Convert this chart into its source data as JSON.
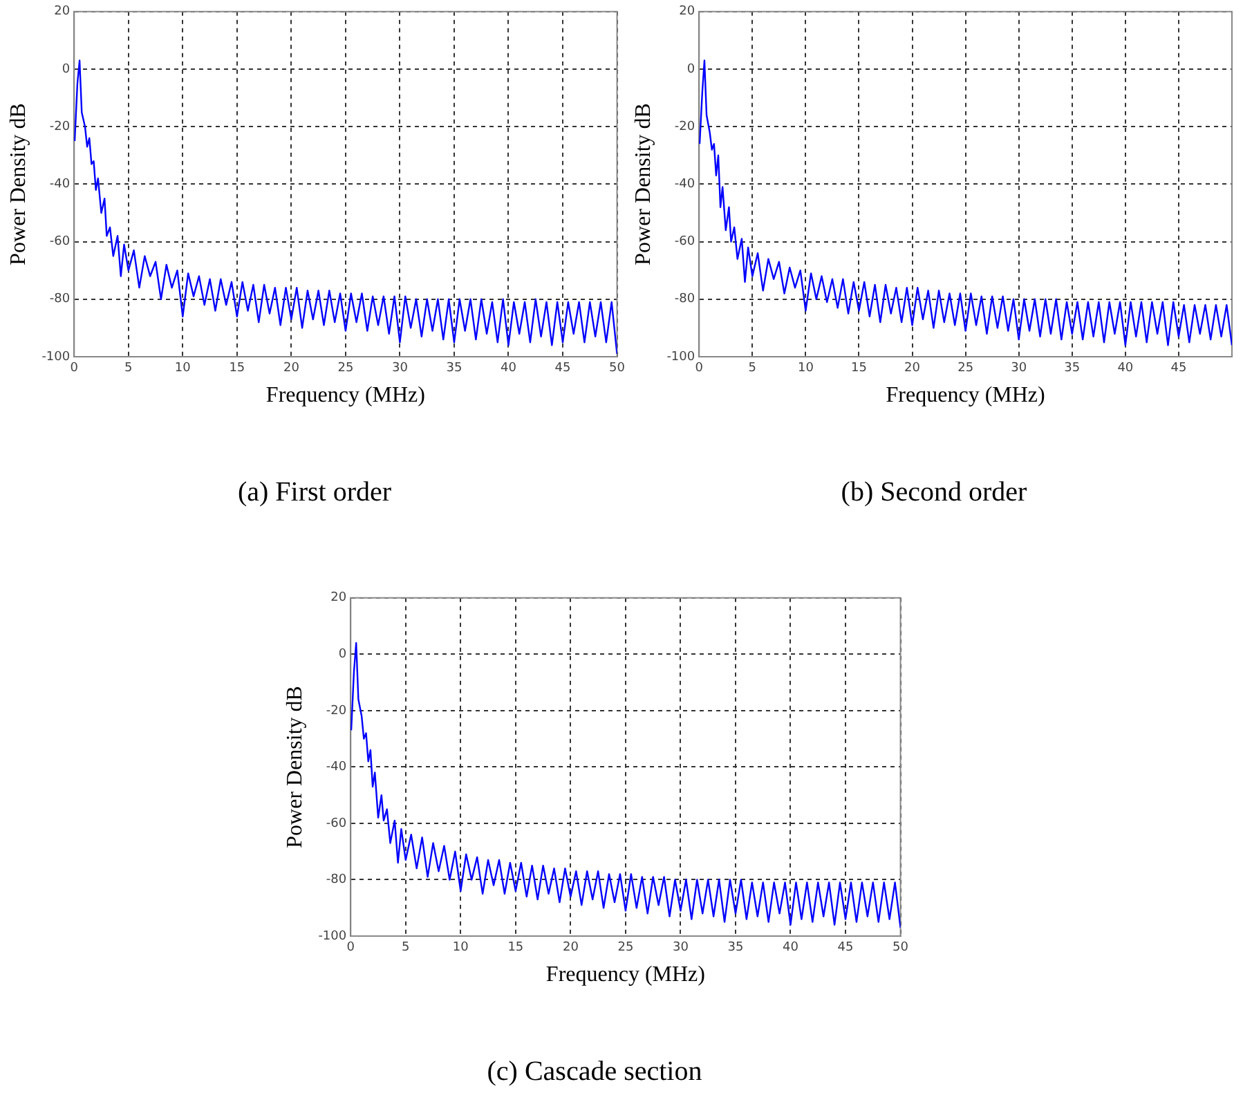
{
  "chart_data": [
    {
      "type": "line",
      "title": "(a) First order",
      "xlabel": "Frequency (MHz)",
      "ylabel": "Power Density dB",
      "xlim": [
        0,
        50
      ],
      "ylim": [
        -100,
        20
      ],
      "xticks": [
        0,
        5,
        10,
        15,
        20,
        25,
        30,
        35,
        40,
        45,
        50
      ],
      "yticks": [
        -100,
        -80,
        -60,
        -40,
        -20,
        0,
        20
      ],
      "grid": true,
      "marker": "none",
      "x": [
        0.05,
        0.3,
        0.5,
        0.7,
        1.0,
        1.2,
        1.4,
        1.6,
        1.8,
        2.0,
        2.2,
        2.5,
        2.8,
        3.0,
        3.3,
        3.6,
        4.0,
        4.3,
        4.6,
        5.0,
        5.5,
        6.0,
        6.5,
        7.0,
        7.5,
        8.0,
        8.5,
        9.0,
        9.5,
        10.0,
        10.5,
        11,
        11.5,
        12,
        12.5,
        13,
        13.5,
        14,
        14.5,
        15,
        15.5,
        16,
        16.5,
        17,
        17.5,
        18,
        18.5,
        19,
        19.5,
        20,
        20.5,
        21,
        21.5,
        22,
        22.5,
        23,
        23.5,
        24,
        24.5,
        25,
        25.5,
        26,
        26.5,
        27,
        27.5,
        28,
        28.5,
        29,
        29.5,
        30,
        30.5,
        31,
        31.5,
        32,
        32.5,
        33,
        33.5,
        34,
        34.5,
        35,
        35.5,
        36,
        36.5,
        37,
        37.5,
        38,
        38.5,
        39,
        39.5,
        40,
        40.5,
        41,
        41.5,
        42,
        42.5,
        43,
        43.5,
        44,
        44.5,
        45,
        45.5,
        46,
        46.5,
        47,
        47.5,
        48,
        48.5,
        49,
        49.5,
        50
      ],
      "series": [
        {
          "color": "#0000ff",
          "values": [
            -25,
            -5,
            3,
            -15,
            -20,
            -27,
            -24,
            -33,
            -32,
            -42,
            -38,
            -50,
            -45,
            -58,
            -55,
            -65,
            -58,
            -72,
            -61,
            -70,
            -63,
            -76,
            -65,
            -72,
            -67,
            -80,
            -68,
            -76,
            -70,
            -86,
            -71,
            -79,
            -72,
            -82,
            -73,
            -84,
            -73,
            -82,
            -74,
            -86,
            -74,
            -84,
            -75,
            -88,
            -75,
            -85,
            -76,
            -89,
            -76,
            -87,
            -76,
            -90,
            -77,
            -87,
            -77,
            -89,
            -77,
            -88,
            -78,
            -91,
            -78,
            -88,
            -78,
            -91,
            -79,
            -89,
            -79,
            -92,
            -79,
            -95,
            -79,
            -90,
            -80,
            -93,
            -80,
            -91,
            -80,
            -94,
            -80,
            -95,
            -80,
            -91,
            -80,
            -94,
            -80,
            -92,
            -81,
            -95,
            -80,
            -96,
            -81,
            -92,
            -81,
            -95,
            -80,
            -93,
            -81,
            -96,
            -81,
            -95,
            -81,
            -92,
            -81,
            -95,
            -81,
            -93,
            -81,
            -95,
            -81,
            -99
          ]
        }
      ]
    },
    {
      "type": "line",
      "title": "(b) Second order",
      "xlabel": "Frequency (MHz)",
      "ylabel": "Power Density dB",
      "xlim": [
        0,
        50
      ],
      "ylim": [
        -100,
        20
      ],
      "xticks": [
        0,
        5,
        10,
        15,
        20,
        25,
        30,
        35,
        40,
        45,
        {
          "value": 50,
          "label": null
        }
      ],
      "yticks": [
        -100,
        -80,
        -60,
        -40,
        -20,
        0,
        20
      ],
      "grid": true,
      "marker": "none",
      "x": [
        0.05,
        0.3,
        0.5,
        0.7,
        1.0,
        1.2,
        1.4,
        1.6,
        1.8,
        2.0,
        2.2,
        2.5,
        2.8,
        3.0,
        3.3,
        3.6,
        4.0,
        4.3,
        4.6,
        5.0,
        5.5,
        6.0,
        6.5,
        7.0,
        7.5,
        8.0,
        8.5,
        9.0,
        9.5,
        10.0,
        10.5,
        11,
        11.5,
        12,
        12.5,
        13,
        13.5,
        14,
        14.5,
        15,
        15.5,
        16,
        16.5,
        17,
        17.5,
        18,
        18.5,
        19,
        19.5,
        20,
        20.5,
        21,
        21.5,
        22,
        22.5,
        23,
        23.5,
        24,
        24.5,
        25,
        25.5,
        26,
        26.5,
        27,
        27.5,
        28,
        28.5,
        29,
        29.5,
        30,
        30.5,
        31,
        31.5,
        32,
        32.5,
        33,
        33.5,
        34,
        34.5,
        35,
        35.5,
        36,
        36.5,
        37,
        37.5,
        38,
        38.5,
        39,
        39.5,
        40,
        40.5,
        41,
        41.5,
        42,
        42.5,
        43,
        43.5,
        44,
        44.5,
        45,
        45.5,
        46,
        46.5,
        47,
        47.5,
        48,
        48.5,
        49,
        49.5,
        50
      ],
      "series": [
        {
          "color": "#0000ff",
          "values": [
            -26,
            -8,
            3,
            -16,
            -22,
            -28,
            -26,
            -37,
            -30,
            -48,
            -41,
            -56,
            -48,
            -60,
            -55,
            -66,
            -59,
            -74,
            -62,
            -72,
            -64,
            -77,
            -66,
            -73,
            -67,
            -78,
            -69,
            -76,
            -70,
            -84,
            -71,
            -80,
            -72,
            -81,
            -73,
            -83,
            -73,
            -85,
            -74,
            -84,
            -74,
            -86,
            -75,
            -88,
            -75,
            -85,
            -76,
            -88,
            -76,
            -89,
            -76,
            -87,
            -77,
            -90,
            -77,
            -88,
            -78,
            -89,
            -78,
            -91,
            -78,
            -89,
            -79,
            -92,
            -79,
            -90,
            -79,
            -91,
            -80,
            -94,
            -80,
            -91,
            -80,
            -93,
            -80,
            -92,
            -80,
            -94,
            -81,
            -92,
            -81,
            -94,
            -81,
            -93,
            -81,
            -95,
            -81,
            -92,
            -81,
            -96,
            -81,
            -93,
            -81,
            -95,
            -81,
            -92,
            -81,
            -96,
            -81,
            -93,
            -82,
            -95,
            -82,
            -92,
            -82,
            -94,
            -82,
            -93,
            -82,
            -96
          ]
        }
      ]
    },
    {
      "type": "line",
      "title": "(c) Cascade section",
      "xlabel": "Frequency (MHz)",
      "ylabel": "Power Density dB",
      "xlim": [
        0,
        50
      ],
      "ylim": [
        -100,
        20
      ],
      "xticks": [
        0,
        5,
        10,
        15,
        20,
        25,
        30,
        35,
        40,
        45,
        50
      ],
      "yticks": [
        -100,
        -80,
        -60,
        -40,
        -20,
        0,
        20
      ],
      "grid": true,
      "marker": "none",
      "x": [
        0.05,
        0.3,
        0.5,
        0.7,
        1.0,
        1.2,
        1.4,
        1.6,
        1.8,
        2.0,
        2.2,
        2.5,
        2.8,
        3.0,
        3.3,
        3.6,
        4.0,
        4.3,
        4.6,
        5.0,
        5.5,
        6.0,
        6.5,
        7.0,
        7.5,
        8.0,
        8.5,
        9.0,
        9.5,
        10.0,
        10.5,
        11,
        11.5,
        12,
        12.5,
        13,
        13.5,
        14,
        14.5,
        15,
        15.5,
        16,
        16.5,
        17,
        17.5,
        18,
        18.5,
        19,
        19.5,
        20,
        20.5,
        21,
        21.5,
        22,
        22.5,
        23,
        23.5,
        24,
        24.5,
        25,
        25.5,
        26,
        26.5,
        27,
        27.5,
        28,
        28.5,
        29,
        29.5,
        30,
        30.5,
        31,
        31.5,
        32,
        32.5,
        33,
        33.5,
        34,
        34.5,
        35,
        35.5,
        36,
        36.5,
        37,
        37.5,
        38,
        38.5,
        39,
        39.5,
        40,
        40.5,
        41,
        41.5,
        42,
        42.5,
        43,
        43.5,
        44,
        44.5,
        45,
        45.5,
        46,
        46.5,
        47,
        47.5,
        48,
        48.5,
        49,
        49.5,
        50
      ],
      "series": [
        {
          "color": "#0000ff",
          "values": [
            -27,
            -6,
            4,
            -16,
            -22,
            -30,
            -28,
            -38,
            -34,
            -47,
            -42,
            -58,
            -50,
            -59,
            -55,
            -67,
            -59,
            -74,
            -62,
            -73,
            -64,
            -76,
            -65,
            -79,
            -67,
            -77,
            -68,
            -80,
            -70,
            -84,
            -71,
            -80,
            -72,
            -85,
            -73,
            -82,
            -73,
            -85,
            -74,
            -84,
            -74,
            -86,
            -75,
            -87,
            -75,
            -85,
            -76,
            -88,
            -76,
            -86,
            -77,
            -89,
            -77,
            -87,
            -77,
            -90,
            -78,
            -88,
            -78,
            -91,
            -78,
            -90,
            -79,
            -92,
            -79,
            -89,
            -79,
            -93,
            -80,
            -91,
            -80,
            -94,
            -80,
            -92,
            -80,
            -93,
            -80,
            -95,
            -80,
            -92,
            -80,
            -94,
            -81,
            -93,
            -81,
            -95,
            -81,
            -92,
            -81,
            -96,
            -81,
            -94,
            -81,
            -95,
            -81,
            -93,
            -81,
            -96,
            -81,
            -94,
            -81,
            -95,
            -81,
            -93,
            -81,
            -95,
            -81,
            -94,
            -81,
            -97
          ]
        }
      ]
    }
  ]
}
